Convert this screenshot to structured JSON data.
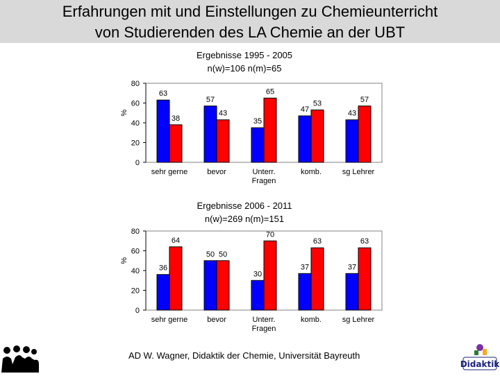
{
  "header": {
    "title_line1": "Erfahrungen mit und Einstellungen zu Chemieunterricht",
    "title_line2": "von Studierenden des LA Chemie an der UBT"
  },
  "footer": {
    "credit": "AD W. Wagner, Didaktik der Chemie, Universität Bayreuth",
    "logo_text": "Didaktik"
  },
  "colors": {
    "women": "#0000ff",
    "men": "#ff0000",
    "plot_bg": "#ffffff"
  },
  "chart_data": [
    {
      "type": "bar",
      "title": "Ergebnisse 1995 - 2005",
      "subtitle": "n(w)=106   n(m)=65",
      "ylabel": "%",
      "xlabel": "",
      "ylim": [
        0,
        80
      ],
      "yticks": [
        0,
        20,
        40,
        60,
        80
      ],
      "categories": [
        "sehr gerne",
        "bevor",
        "Unterr. Fragen",
        "komb.",
        "sg Lehrer"
      ],
      "series": [
        {
          "name": "w",
          "values": [
            63,
            57,
            35,
            47,
            43
          ]
        },
        {
          "name": "m",
          "values": [
            38,
            43,
            65,
            53,
            57
          ]
        }
      ]
    },
    {
      "type": "bar",
      "title": "Ergebnisse 2006 - 2011",
      "subtitle": "n(w)=269        n(m)=151",
      "ylabel": "%",
      "xlabel": "",
      "ylim": [
        0,
        80
      ],
      "yticks": [
        0,
        20,
        40,
        60,
        80
      ],
      "categories": [
        "sehr gerne",
        "bevor",
        "Unterr. Fragen",
        "komb.",
        "sg Lehrer"
      ],
      "series": [
        {
          "name": "w",
          "values": [
            36,
            50,
            30,
            37,
            37
          ]
        },
        {
          "name": "m",
          "values": [
            64,
            50,
            70,
            63,
            63
          ]
        }
      ]
    }
  ]
}
